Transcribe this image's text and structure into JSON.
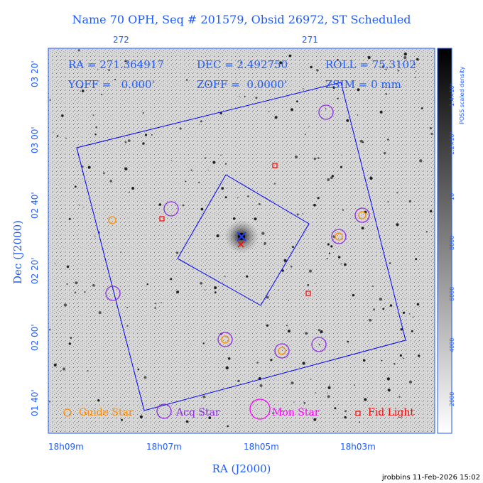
{
  "title": "Name 70 OPH, Seq # 201579, Obsid 26972, ST Scheduled",
  "top_axis_ticks": [
    "272",
    "271"
  ],
  "info": {
    "ra": "RA = 271.364917",
    "dec": "DEC = 2.492750",
    "roll": "ROLL = 75.3102",
    "yoff": "YOFF =   0.000'",
    "zoff": "ZOFF =  0.0000'",
    "zsim": "ZSIM = 0 mm"
  },
  "y_axis": {
    "label": "Dec (J2000)",
    "ticks": [
      "03 20'",
      "03 00'",
      "02 40'",
      "02 20'",
      "02 00'",
      "01 40'"
    ]
  },
  "x_axis": {
    "label": "RA (J2000)",
    "ticks": [
      "18h09m",
      "18h07m",
      "18h05m",
      "18h03m"
    ]
  },
  "colorbar": {
    "label": "POSS scaled density",
    "ticks": [
      "1.4×10⁴",
      "1.2×10⁴",
      "10⁴",
      "8000",
      "6000",
      "4000",
      "2000"
    ]
  },
  "legend": {
    "guide_star": "Guide Star",
    "acq_star": "Acq Star",
    "mon_star": "Mon Star",
    "fid_light": "Fid Light"
  },
  "colors": {
    "axis_text": "#1e5aff",
    "guide_star": "#ff8c00",
    "acq_star": "#8a2be2",
    "mon_star": "#ff00ff",
    "fid_light": "#ff0000",
    "outline": "#0000ff"
  },
  "footer": "jrobbins 11-Feb-2026 15:02"
}
